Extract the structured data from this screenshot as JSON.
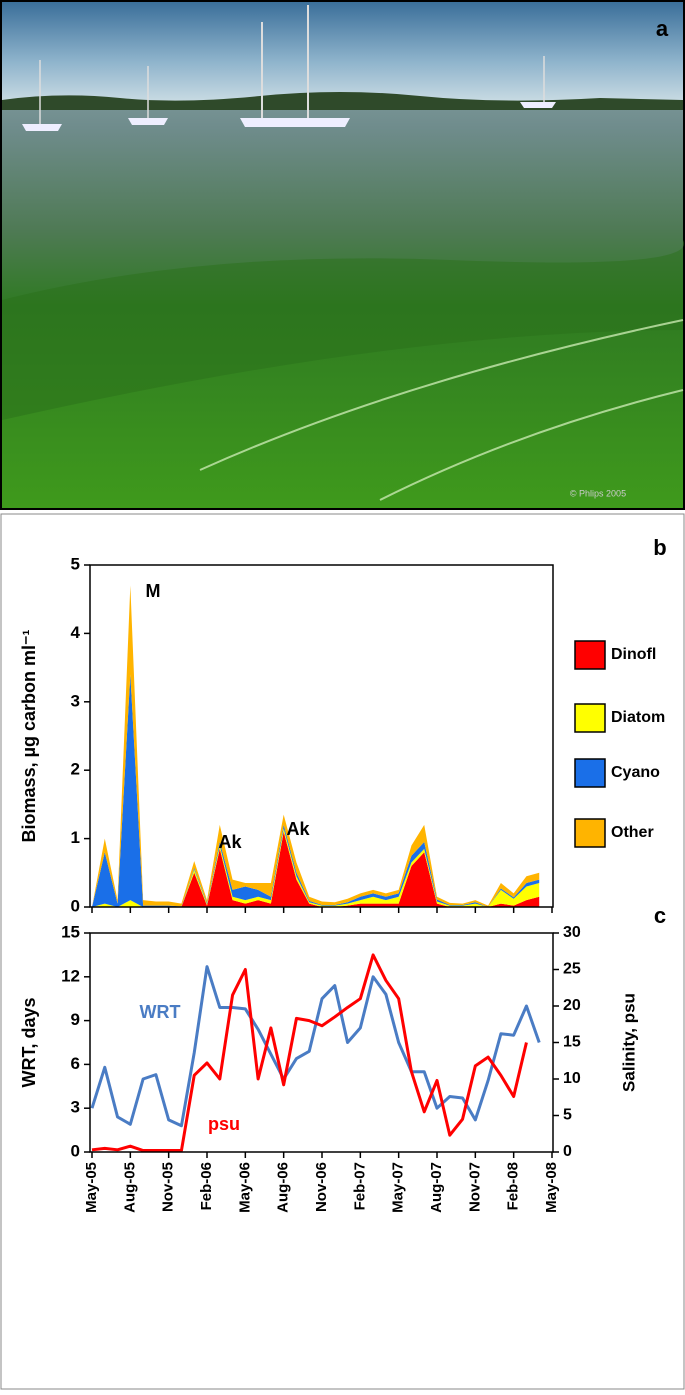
{
  "photo": {
    "label": "a",
    "credit": "© Phlips 2005"
  },
  "chart_data": [
    {
      "type": "stacked-area",
      "panel_label": "b",
      "ylabel": "Biomass, µg carbon ml⁻¹",
      "x": [
        "2005-05",
        "2005-06",
        "2005-07",
        "2005-08",
        "2005-09",
        "2005-10",
        "2005-11",
        "2005-12",
        "2006-01",
        "2006-02",
        "2006-03",
        "2006-04",
        "2006-05",
        "2006-06",
        "2006-07",
        "2006-08",
        "2006-09",
        "2006-10",
        "2006-11",
        "2006-12",
        "2007-01",
        "2007-02",
        "2007-03",
        "2007-04",
        "2007-05",
        "2007-06",
        "2007-07",
        "2007-08",
        "2007-09",
        "2007-10",
        "2007-11",
        "2007-12",
        "2008-01",
        "2008-02",
        "2008-03",
        "2008-04"
      ],
      "series": [
        {
          "name": "Dinofl",
          "color": "#ff0000",
          "values": [
            0,
            0,
            0,
            0,
            0,
            0,
            0,
            0,
            0.5,
            0.02,
            0.85,
            0.1,
            0.05,
            0.1,
            0.05,
            1.1,
            0.4,
            0.05,
            0,
            0,
            0.02,
            0.05,
            0.05,
            0.05,
            0.05,
            0.6,
            0.8,
            0.05,
            0,
            0,
            0,
            0,
            0.05,
            0.02,
            0.1,
            0.15
          ]
        },
        {
          "name": "Diatom",
          "color": "#ffff00",
          "values": [
            0,
            0.05,
            0,
            0.1,
            0,
            0,
            0,
            0,
            0.05,
            0.02,
            0.05,
            0.05,
            0.05,
            0.05,
            0.05,
            0.05,
            0.05,
            0.02,
            0.02,
            0.02,
            0.03,
            0.05,
            0.1,
            0.05,
            0.1,
            0.05,
            0.05,
            0.03,
            0.02,
            0.02,
            0.05,
            0,
            0.2,
            0.1,
            0.2,
            0.2
          ]
        },
        {
          "name": "Cyano",
          "color": "#1a6fe8",
          "values": [
            0,
            0.75,
            0.05,
            3.3,
            0.02,
            0.02,
            0.02,
            0.01,
            0.02,
            0.02,
            0.05,
            0.1,
            0.2,
            0.1,
            0.05,
            0.05,
            0.05,
            0.02,
            0.01,
            0.01,
            0.02,
            0.05,
            0.05,
            0.05,
            0.05,
            0.1,
            0.1,
            0.03,
            0.01,
            0.01,
            0.02,
            0,
            0.02,
            0.02,
            0.05,
            0.05
          ]
        },
        {
          "name": "Other",
          "color": "#ffb400",
          "values": [
            0,
            0.2,
            0.05,
            1.3,
            0.08,
            0.06,
            0.06,
            0.04,
            0.1,
            0.04,
            0.25,
            0.15,
            0.05,
            0.1,
            0.2,
            0.15,
            0.15,
            0.06,
            0.05,
            0.04,
            0.05,
            0.05,
            0.05,
            0.05,
            0.05,
            0.15,
            0.25,
            0.04,
            0.03,
            0.02,
            0.03,
            0.02,
            0.08,
            0.06,
            0.1,
            0.1
          ]
        }
      ],
      "annotations": [
        "M",
        "Ak",
        "Ak"
      ],
      "xlim": [
        "2005-05",
        "2008-05"
      ],
      "xticks": [
        "2005-05",
        "2005-08",
        "2005-11",
        "2006-02",
        "2006-05",
        "2006-08",
        "2006-11",
        "2007-02",
        "2007-05",
        "2007-08",
        "2007-11",
        "2008-02",
        "2008-05"
      ],
      "ylim": [
        0,
        5
      ],
      "yticks": [
        0,
        1,
        2,
        3,
        4,
        5
      ]
    },
    {
      "type": "line",
      "panel_label": "c",
      "ylabel": "WRT, days",
      "y2label": "Salinity,  psu",
      "x": [
        "2005-05",
        "2005-06",
        "2005-07",
        "2005-08",
        "2005-09",
        "2005-10",
        "2005-11",
        "2005-12",
        "2006-01",
        "2006-02",
        "2006-03",
        "2006-04",
        "2006-05",
        "2006-06",
        "2006-07",
        "2006-08",
        "2006-09",
        "2006-10",
        "2006-11",
        "2006-12",
        "2007-01",
        "2007-02",
        "2007-03",
        "2007-04",
        "2007-05",
        "2007-06",
        "2007-07",
        "2007-08",
        "2007-09",
        "2007-10",
        "2007-11",
        "2007-12",
        "2008-01",
        "2008-02",
        "2008-03",
        "2008-04"
      ],
      "series": [
        {
          "name": "WRT",
          "color": "#4a7cc4",
          "values": [
            3,
            5.8,
            2.4,
            1.9,
            5,
            5.3,
            2.2,
            1.8,
            6.8,
            12.7,
            9.9,
            9.9,
            9.8,
            8.4,
            6.7,
            5,
            6.4,
            6.9,
            10.5,
            11.4,
            7.5,
            8.5,
            12,
            10.8,
            7.5,
            5.5,
            5.5,
            3,
            3.8,
            3.7,
            2.2,
            4.9,
            8.1,
            8,
            10,
            7.5
          ]
        },
        {
          "name": "psu",
          "color": "#ff0000",
          "axis": "y2",
          "values": [
            0.3,
            0.5,
            0.3,
            0.8,
            0.2,
            0.2,
            0.2,
            0.2,
            10.5,
            12.2,
            10,
            21.5,
            25,
            10,
            17,
            9.2,
            18.3,
            18,
            17.3,
            18.5,
            19.8,
            21,
            27,
            23.5,
            21,
            11,
            5.5,
            9.8,
            2.3,
            4.5,
            11.8,
            13,
            10.5,
            7.6,
            15,
            null
          ]
        }
      ],
      "xlim": [
        "2005-05",
        "2008-05"
      ],
      "xticks": [
        {
          "value": "2005-05",
          "label": "May-05"
        },
        {
          "value": "2005-08",
          "label": "Aug-05"
        },
        {
          "value": "2005-11",
          "label": "Nov-05"
        },
        {
          "value": "2006-02",
          "label": "Feb-06"
        },
        {
          "value": "2006-05",
          "label": "May-06"
        },
        {
          "value": "2006-08",
          "label": "Aug-06"
        },
        {
          "value": "2006-11",
          "label": "Nov-06"
        },
        {
          "value": "2007-02",
          "label": "Feb-07"
        },
        {
          "value": "2007-05",
          "label": "May-07"
        },
        {
          "value": "2007-08",
          "label": "Aug-07"
        },
        {
          "value": "2007-11",
          "label": "Nov-07"
        },
        {
          "value": "2008-02",
          "label": "Feb-08"
        },
        {
          "value": "2008-05",
          "label": "May-08"
        }
      ],
      "ylim": [
        0,
        15
      ],
      "yticks": [
        0,
        3,
        6,
        9,
        12,
        15
      ],
      "y2lim": [
        0,
        30
      ],
      "y2ticks": [
        0,
        5,
        10,
        15,
        20,
        25,
        30
      ]
    }
  ]
}
